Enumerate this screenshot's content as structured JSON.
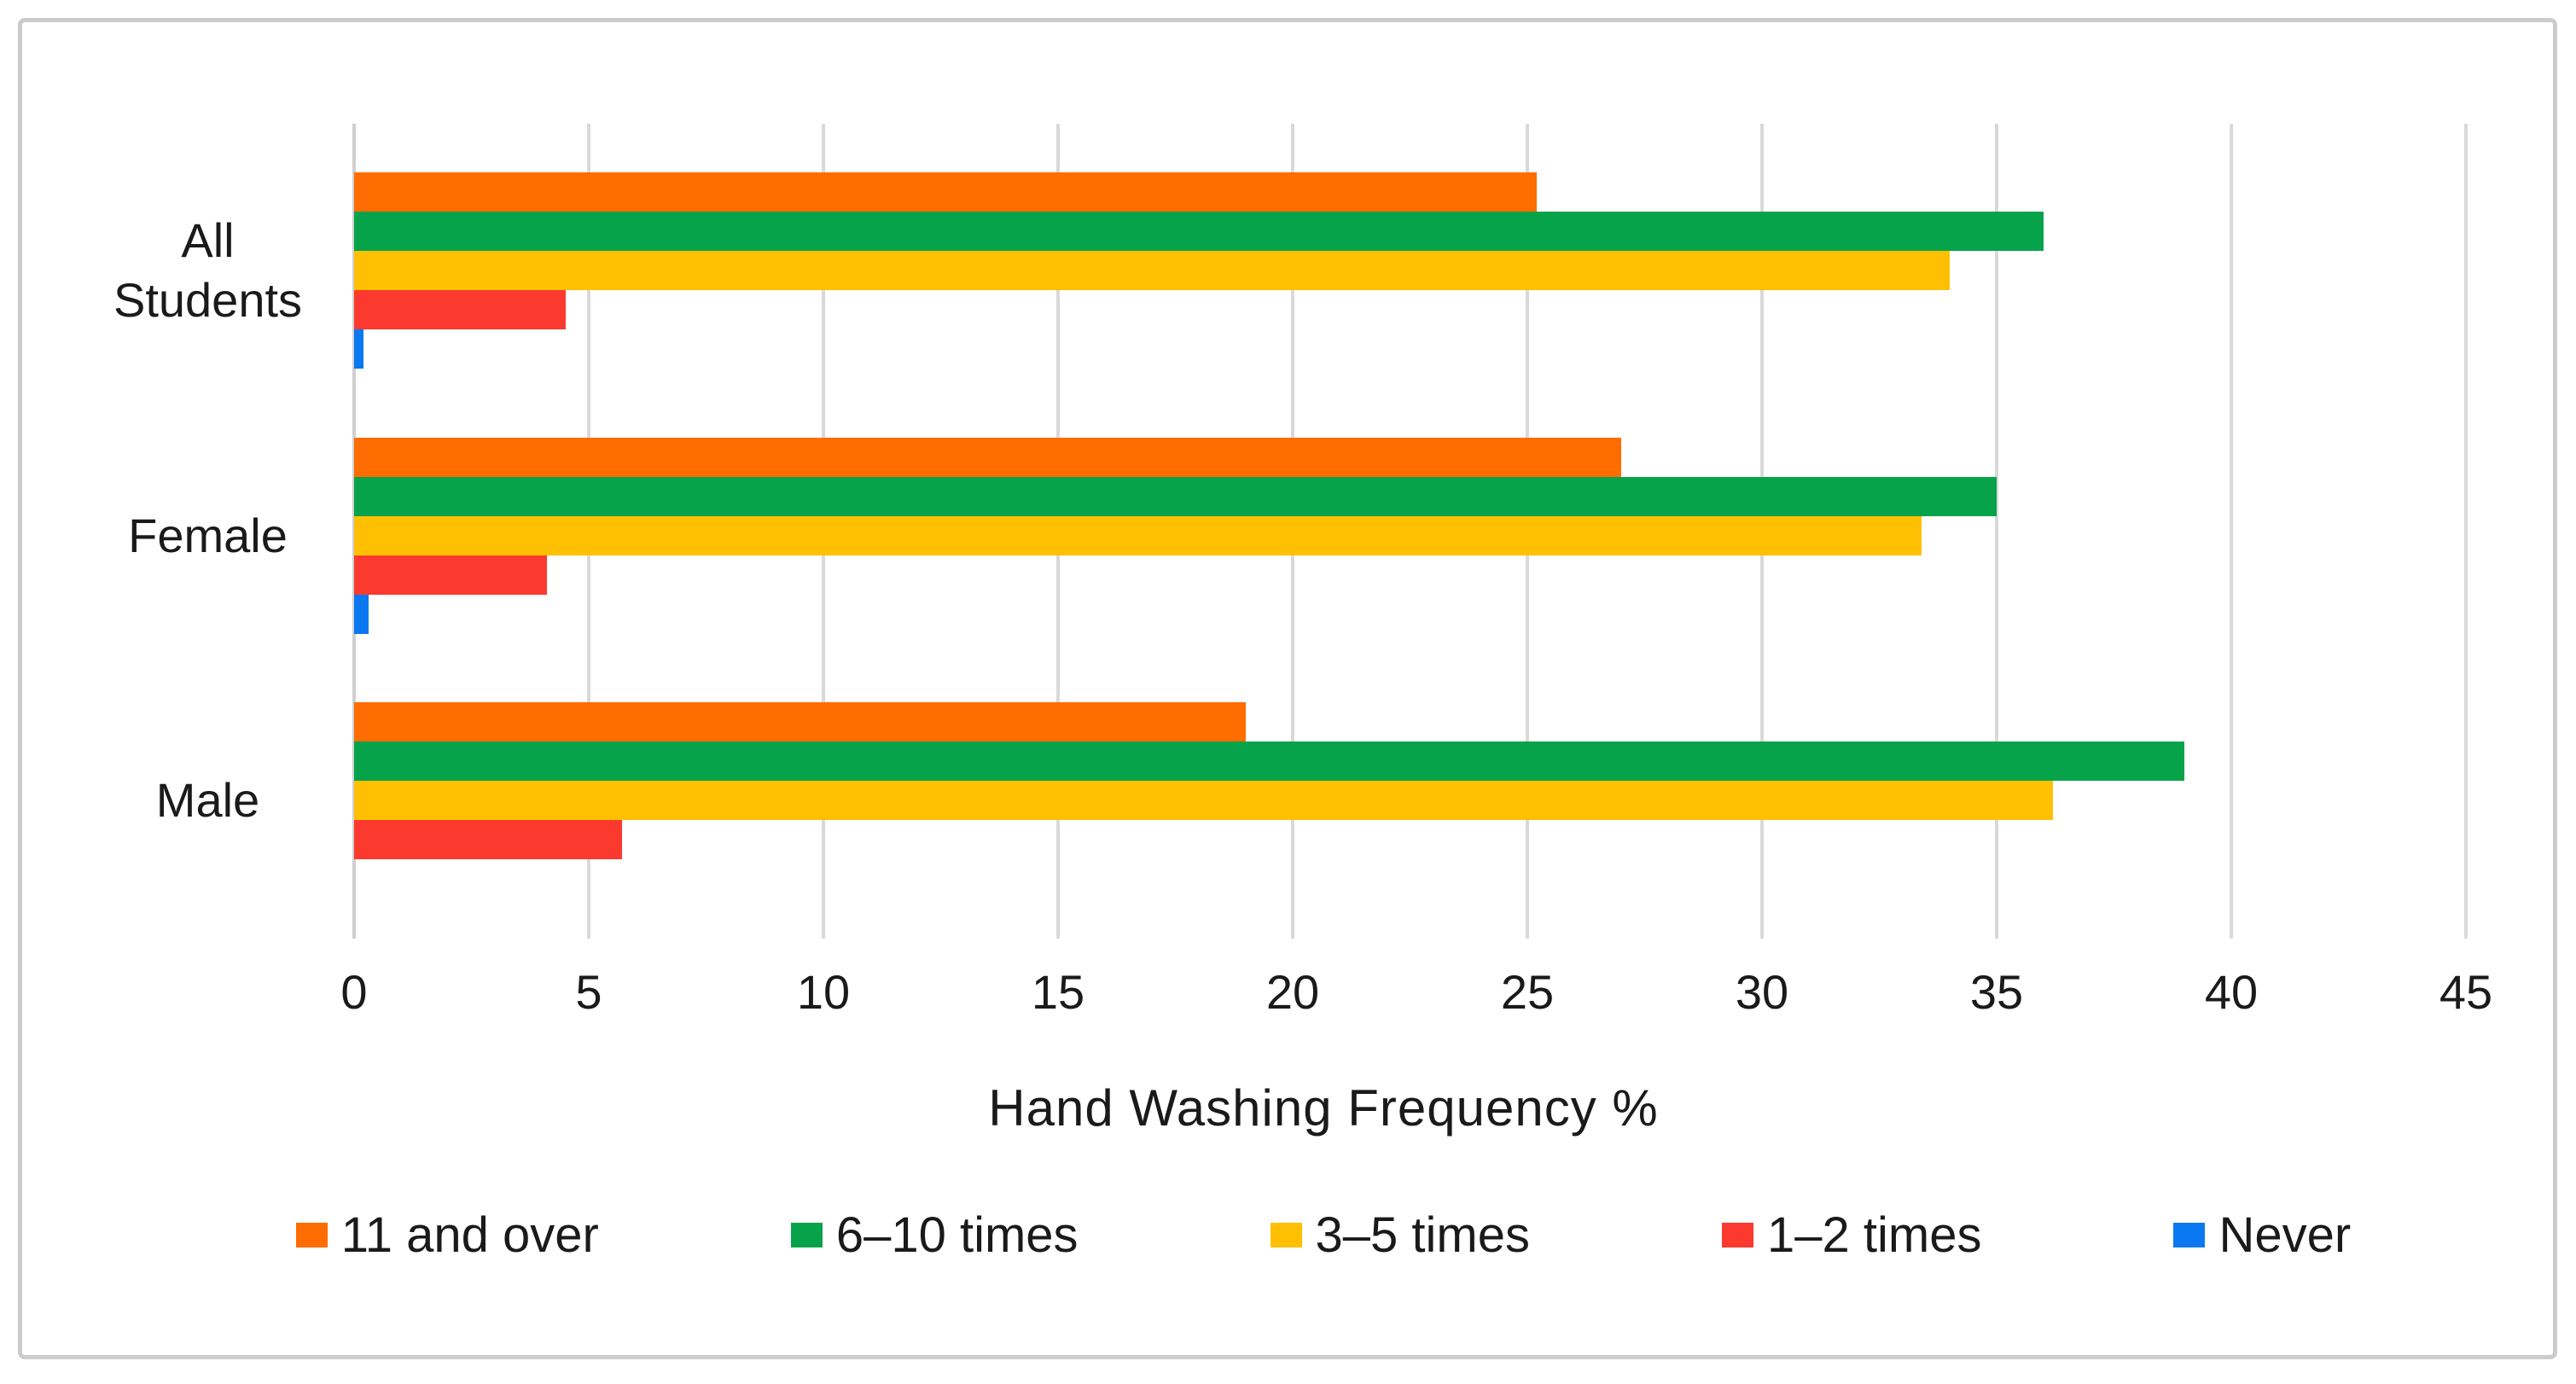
{
  "chart_data": {
    "type": "bar",
    "orientation": "horizontal",
    "title": "",
    "xlabel": "Hand Washing Frequency %",
    "ylabel": "",
    "categories": [
      "All Students",
      "Female",
      "Male"
    ],
    "series": [
      {
        "name": "11 and over",
        "color": "#FF6C00",
        "values": [
          25.2,
          27.0,
          19.0
        ]
      },
      {
        "name": "6–10 times",
        "color": "#07A34A",
        "values": [
          36.0,
          35.0,
          39.0
        ]
      },
      {
        "name": "3–5 times",
        "color": "#FFC003",
        "values": [
          34.0,
          33.4,
          36.2
        ]
      },
      {
        "name": "1–2 times",
        "color": "#FB392E",
        "values": [
          4.5,
          4.1,
          5.7
        ]
      },
      {
        "name": "Never",
        "color": "#0A79F1",
        "values": [
          0.2,
          0.3,
          0.0
        ]
      }
    ],
    "xlim": [
      0,
      45
    ],
    "xticks": [
      0,
      5,
      10,
      15,
      20,
      25,
      30,
      35,
      40,
      45
    ],
    "grid": "vertical",
    "legend_position": "bottom"
  },
  "palette": {
    "background": "#FFFFFF",
    "frame_border": "#CCCCCC",
    "gridline": "#D9D9D9",
    "text": "#1A1A1A"
  }
}
